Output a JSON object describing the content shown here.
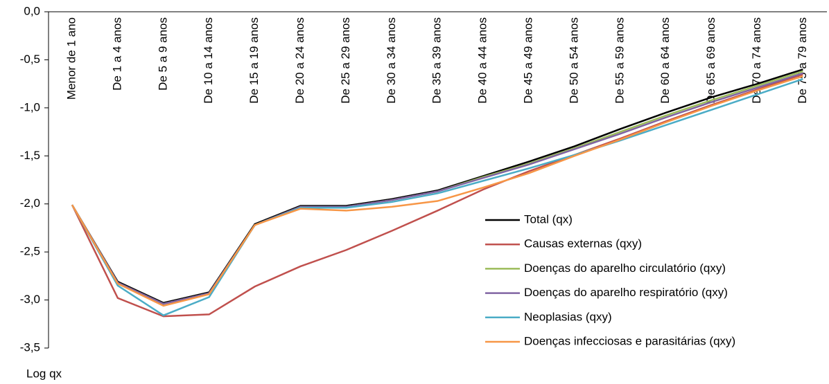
{
  "chart_data": {
    "type": "line",
    "y_label": "Log qx",
    "categories": [
      "Menor de 1 ano",
      "De 1 a 4 anos",
      "De 5 a 9 anos",
      "De 10 a 14 anos",
      "De 15 a 19 anos",
      "De 20 a 24 anos",
      "De 25 a 29 anos",
      "De 30 a 34 anos",
      "De 35 a 39 anos",
      "De 40 a 44 anos",
      "De 45 a 49 anos",
      "De 50 a 54 anos",
      "De 55 a 59 anos",
      "De 60 a 64 anos",
      "De 65 a 69 anos",
      "De 70 a 74 anos",
      "De 75 a 79 anos"
    ],
    "series": [
      {
        "name": "Total (qx)",
        "color": "#000000",
        "values": [
          -2.01,
          -2.81,
          -3.03,
          -2.92,
          -2.21,
          -2.02,
          -2.02,
          -1.95,
          -1.86,
          -1.71,
          -1.56,
          -1.4,
          -1.22,
          -1.05,
          -0.89,
          -0.75,
          -0.6
        ]
      },
      {
        "name": "Causas externas (qxy)",
        "color": "#c0504d",
        "values": [
          -2.01,
          -2.98,
          -3.17,
          -3.15,
          -2.86,
          -2.65,
          -2.48,
          -2.28,
          -2.07,
          -1.85,
          -1.66,
          -1.49,
          -1.32,
          -1.14,
          -0.97,
          -0.81,
          -0.65
        ]
      },
      {
        "name": "Doenças do aparelho circulatório (qxy)",
        "color": "#9bbb59",
        "values": [
          -2.01,
          -2.82,
          -3.04,
          -2.93,
          -2.22,
          -2.03,
          -2.03,
          -1.96,
          -1.87,
          -1.72,
          -1.58,
          -1.42,
          -1.25,
          -1.08,
          -0.92,
          -0.77,
          -0.62
        ]
      },
      {
        "name": "Doenças do aparelho respiratório (qxy)",
        "color": "#8064a2",
        "values": [
          -2.01,
          -2.82,
          -3.04,
          -2.93,
          -2.22,
          -2.03,
          -2.03,
          -1.96,
          -1.87,
          -1.73,
          -1.59,
          -1.43,
          -1.27,
          -1.1,
          -0.94,
          -0.79,
          -0.64
        ]
      },
      {
        "name": "Neoplasias (qxy)",
        "color": "#4bacc6",
        "values": [
          -2.01,
          -2.85,
          -3.16,
          -2.97,
          -2.22,
          -2.04,
          -2.04,
          -1.98,
          -1.89,
          -1.76,
          -1.63,
          -1.49,
          -1.34,
          -1.18,
          -1.02,
          -0.86,
          -0.7
        ]
      },
      {
        "name": "Doenças infecciosas e parasitárias (qxy)",
        "color": "#f79646",
        "values": [
          -2.01,
          -2.83,
          -3.06,
          -2.94,
          -2.22,
          -2.05,
          -2.07,
          -2.03,
          -1.97,
          -1.83,
          -1.68,
          -1.5,
          -1.33,
          -1.15,
          -0.98,
          -0.82,
          -0.67
        ]
      }
    ],
    "ylim": [
      -3.5,
      0
    ],
    "yticks": [
      {
        "value": -3.5,
        "label": "-3,5"
      },
      {
        "value": -3,
        "label": "-3,0"
      },
      {
        "value": -2.5,
        "label": "-2,5"
      },
      {
        "value": -2,
        "label": "-2,0"
      },
      {
        "value": -1.5,
        "label": "-1,5"
      },
      {
        "value": -1,
        "label": "-1,0"
      },
      {
        "value": -0.5,
        "label": "-0,5"
      },
      {
        "value": 0,
        "label": "0,0"
      }
    ],
    "legend": "lower-right"
  }
}
